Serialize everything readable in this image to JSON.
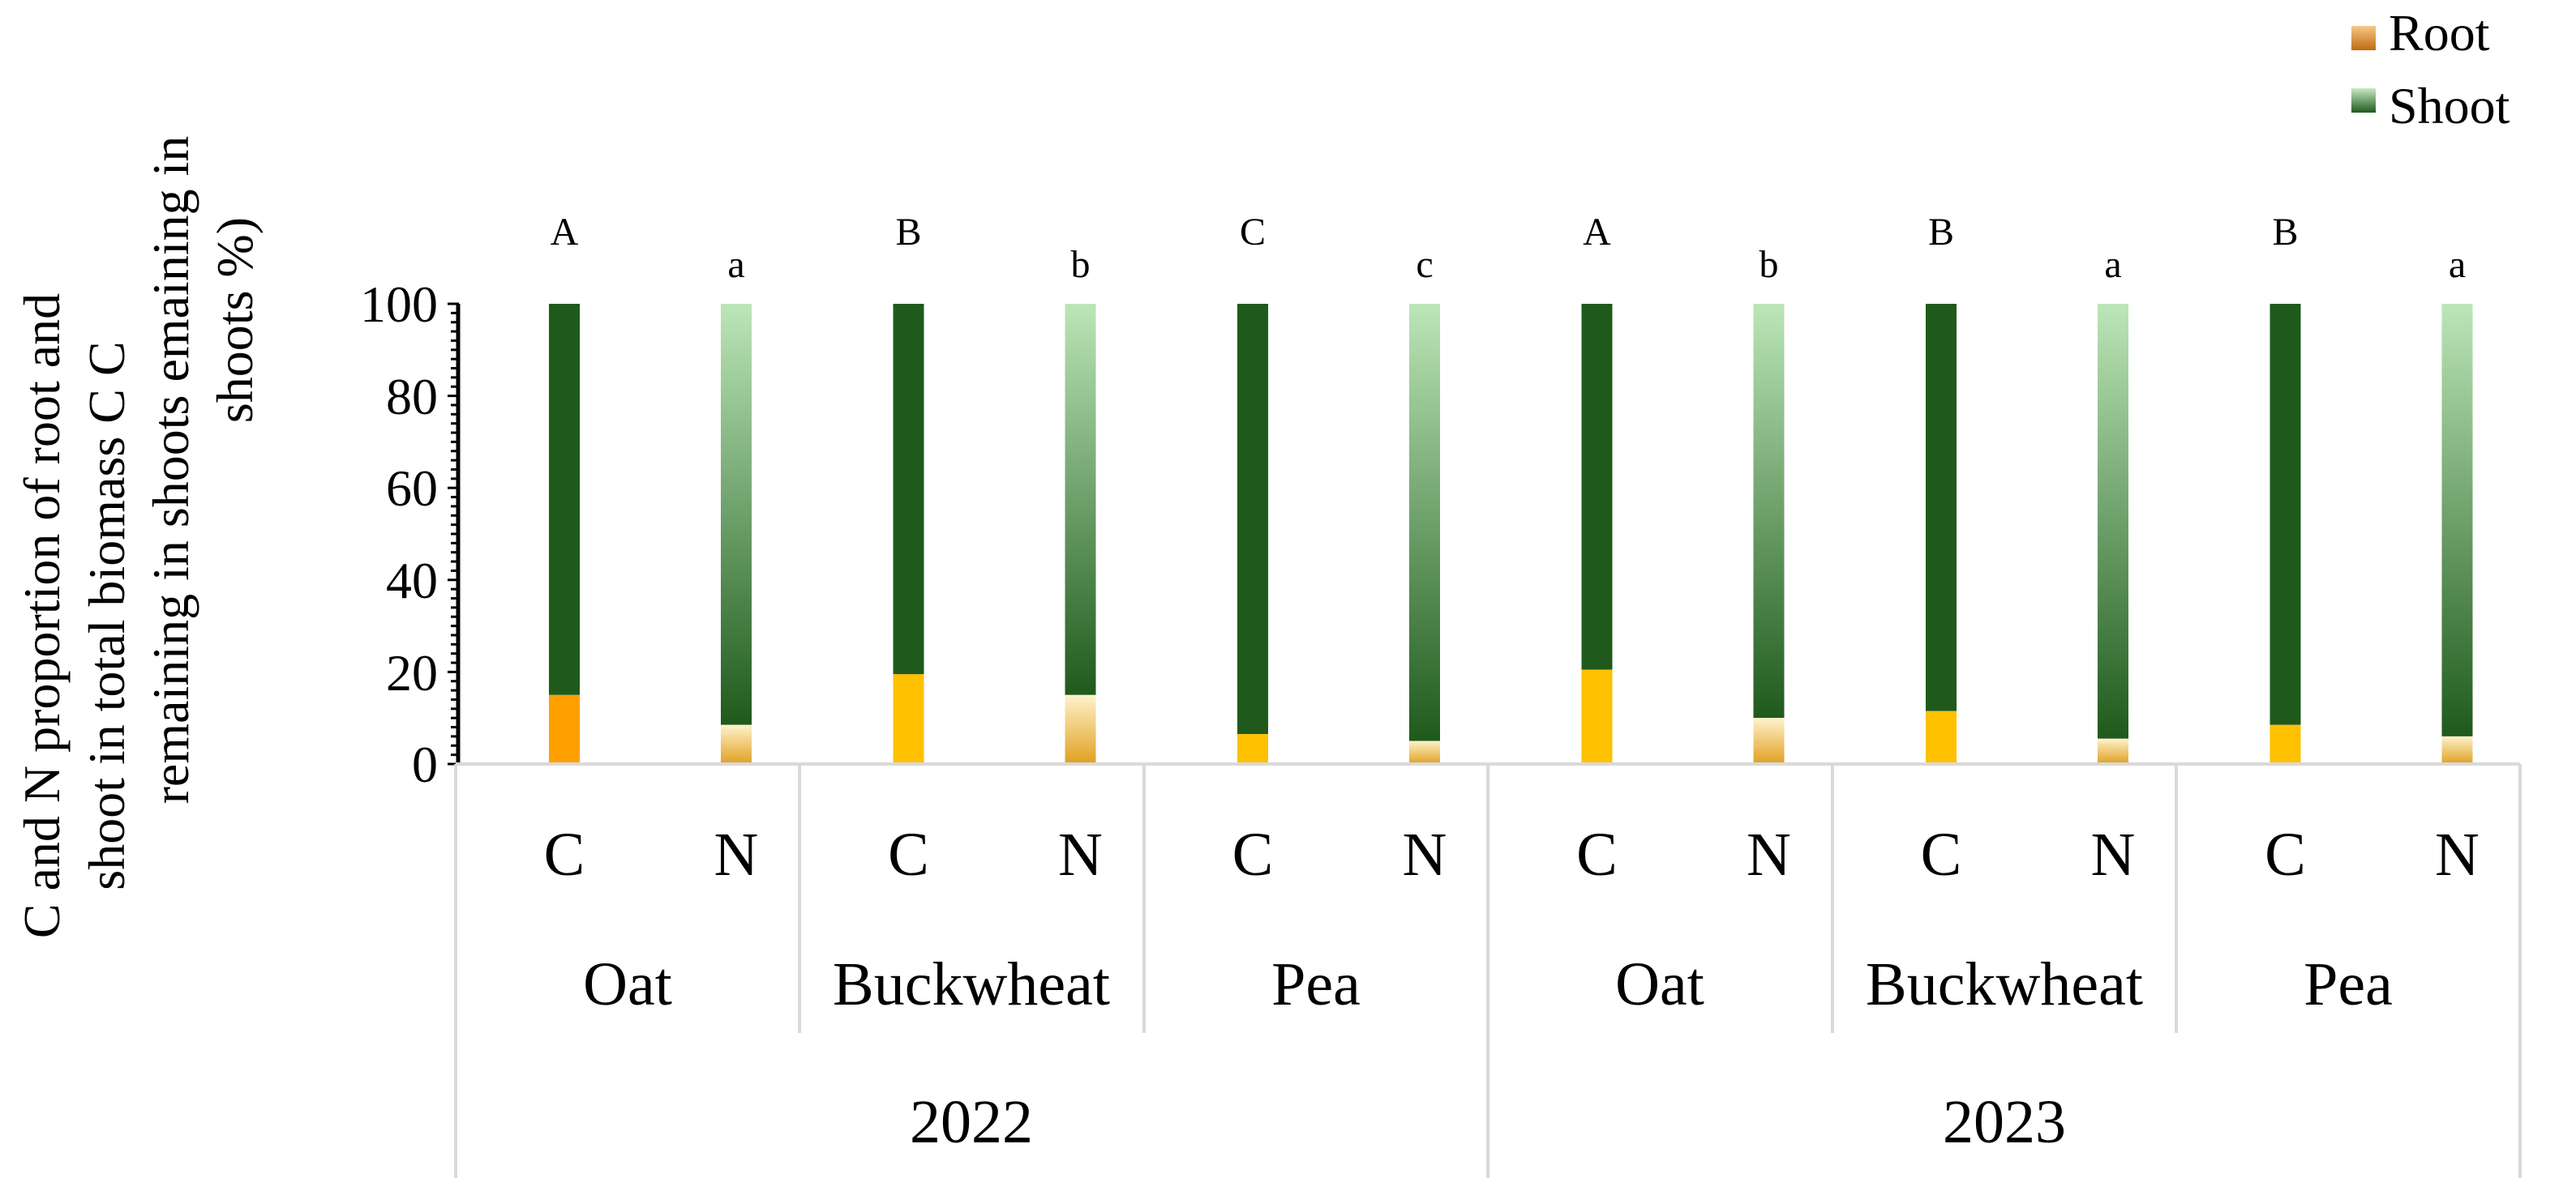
{
  "chart_data": {
    "type": "bar",
    "stacked": true,
    "ylabel_lines": [
      "C and N proportion of root and",
      "shoot in total biomass C C",
      "remaining in shoots emaining in",
      "shoots %)"
    ],
    "ylim": [
      0,
      100
    ],
    "yticks": [
      "0",
      "20",
      "40",
      "60",
      "80",
      "100"
    ],
    "grid": false,
    "legend_position": "top-right",
    "legend": [
      {
        "name": "Root"
      },
      {
        "name": "Shoot"
      }
    ],
    "years": [
      {
        "label": "2022",
        "crops": [
          "Oat",
          "Buckwheat",
          "Pea"
        ]
      },
      {
        "label": "2023",
        "crops": [
          "Oat",
          "Buckwheat",
          "Pea"
        ]
      }
    ],
    "elements": [
      "C",
      "N"
    ],
    "series": [
      {
        "name": "Root",
        "values": [
          15,
          8.5,
          19.5,
          15,
          6.5,
          5,
          20.5,
          10,
          11.5,
          5.5,
          8.5,
          6
        ]
      },
      {
        "name": "Shoot",
        "values": [
          85,
          91.5,
          80.5,
          85,
          93.5,
          95,
          79.5,
          90,
          88.5,
          94.5,
          91.5,
          94
        ]
      }
    ],
    "significance_letters": [
      "A",
      "a",
      "B",
      "b",
      "C",
      "c",
      "A",
      "b",
      "B",
      "a",
      "B",
      "a"
    ],
    "colors": {
      "root_C": [
        "#FFC000",
        "#FFC000",
        "#FFC000",
        "#FFC000",
        "#FFC000",
        "#FFC000"
      ],
      "root_C_oat_2022": "#FFA000",
      "root_N_top": "#FFF2CC",
      "root_N_bottom": "#E0A020",
      "shoot_C": "#1F5A1C",
      "shoot_N_top": "#BCE6B8",
      "shoot_N_bottom": "#1F5A1C",
      "legend_root_top": "#F6C88A",
      "legend_root_bottom": "#C06A10",
      "legend_shoot_top": "#C8EAC4",
      "legend_shoot_bottom": "#1F5A1C",
      "axis": "#000000",
      "category_lines": "#D9D9D9"
    }
  }
}
